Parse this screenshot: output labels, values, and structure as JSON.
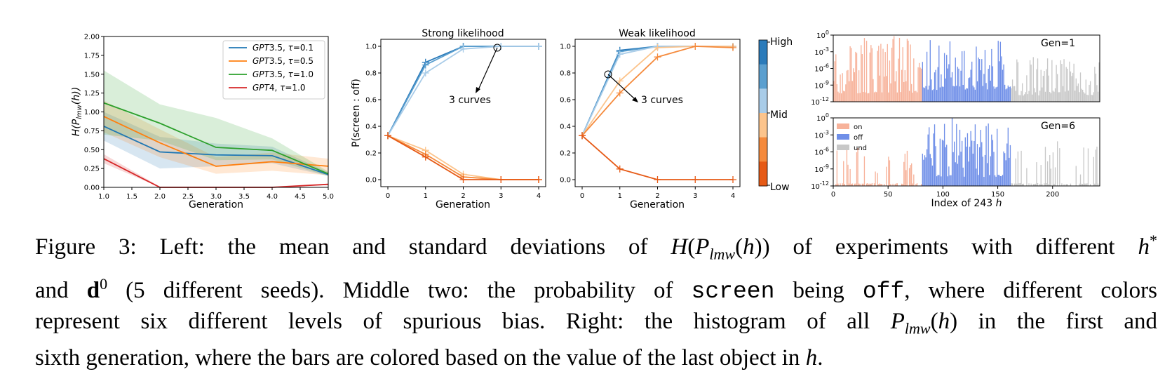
{
  "colors": {
    "gpt35_t01": "#1f77b4",
    "gpt35_t05": "#ff7f0e",
    "gpt35_t10": "#2ca02c",
    "gpt4_t10": "#d62728",
    "bias_levels": [
      "#2b7bba",
      "#5b9fcf",
      "#a9cce8",
      "#fcc48c",
      "#f58a3c",
      "#e65a16"
    ],
    "hist_on": "#f7b29a",
    "hist_off": "#6f8fe8",
    "hist_und": "#c8c8c8"
  },
  "caption": {
    "line1_a": "Figure 3: Left: the mean and standard deviations of ",
    "line1_H": "H",
    "line1_P": "P",
    "line1_sub": "lmw",
    "line1_h": "h",
    "line1_b": ")) of experiments with different ",
    "line1_hstar": "h",
    "line2_a": "and ",
    "line2_d": "d",
    "line2_b": " (5 different seeds). Middle two: the probability of ",
    "line2_screen": "screen",
    "line2_c": " being ",
    "line2_off": "off",
    "line2_d2": ", where different colors",
    "line3_a": "represent six different levels of spurious bias. Right: the histogram of all ",
    "line3_P": "P",
    "line3_sub": "lmw",
    "line3_h": "h",
    "line3_b": ") in the first and",
    "line4_a": "sixth generation, where the bars are colored based on the value of the last object in ",
    "line4_h": "h",
    "line4_b": "."
  },
  "chart_data": [
    {
      "type": "line",
      "xlabel": "Generation",
      "ylabel": "H(P_lmw(h))",
      "xlim": [
        1.0,
        5.0
      ],
      "ylim": [
        0.0,
        2.0
      ],
      "xticks": [
        "1.0",
        "1.5",
        "2.0",
        "2.5",
        "3.0",
        "3.5",
        "4.0",
        "4.5",
        "5.0"
      ],
      "yticks": [
        "0.00",
        "0.25",
        "0.50",
        "0.75",
        "1.00",
        "1.25",
        "1.50",
        "1.75",
        "2.00"
      ],
      "legend_placement": "top-right",
      "x": [
        1,
        2,
        3,
        4,
        5
      ],
      "series": [
        {
          "name": "GPT3.5, τ=0.1",
          "model": "GPT",
          "ver": "3.5, ",
          "tau": "0.1",
          "color": "#1f77b4",
          "values": [
            0.81,
            0.47,
            0.43,
            0.42,
            0.17
          ],
          "lower": [
            0.62,
            0.25,
            0.28,
            0.32,
            0.15
          ],
          "upper": [
            1.0,
            0.67,
            0.58,
            0.54,
            0.2
          ]
        },
        {
          "name": "GPT3.5, τ=0.5",
          "model": "GPT",
          "ver": "3.5, ",
          "tau": "0.5",
          "color": "#ff7f0e",
          "values": [
            0.94,
            0.59,
            0.28,
            0.34,
            0.28
          ],
          "lower": [
            0.73,
            0.4,
            0.18,
            0.22,
            0.16
          ],
          "upper": [
            1.15,
            0.77,
            0.4,
            0.46,
            0.38
          ]
        },
        {
          "name": "GPT3.5, τ=1.0",
          "model": "GPT",
          "ver": "3.5, ",
          "tau": "1.0",
          "color": "#2ca02c",
          "values": [
            1.12,
            0.85,
            0.53,
            0.49,
            0.18
          ],
          "lower": [
            0.7,
            0.62,
            0.36,
            0.37,
            0.15
          ],
          "upper": [
            1.55,
            1.1,
            0.92,
            0.65,
            0.21
          ]
        },
        {
          "name": "GPT4, τ=1.0",
          "model": "GPT",
          "ver": "4, ",
          "tau": "1.0",
          "color": "#d62728",
          "values": [
            0.38,
            0.0,
            0.0,
            0.0,
            0.04
          ],
          "lower": [
            0.32,
            0.0,
            0.0,
            0.0,
            0.03
          ],
          "upper": [
            0.44,
            0.01,
            0.01,
            0.01,
            0.05
          ]
        }
      ]
    },
    {
      "type": "line",
      "title": "Strong likelihood",
      "xlabel": "Generation",
      "ylabel": "P(screen : off)",
      "xlim": [
        0,
        4
      ],
      "ylim": [
        0.0,
        1.0
      ],
      "xticks": [
        "0",
        "1",
        "2",
        "3",
        "4"
      ],
      "yticks": [
        "0.0",
        "0.2",
        "0.4",
        "0.6",
        "0.8",
        "1.0"
      ],
      "annotation": "3 curves",
      "x": [
        0,
        1,
        2,
        3,
        4
      ],
      "series": [
        {
          "level": 0,
          "values": [
            0.33,
            0.88,
            1.0,
            1.0,
            1.0
          ]
        },
        {
          "level": 1,
          "values": [
            0.33,
            0.86,
            1.0,
            1.0,
            1.0
          ]
        },
        {
          "level": 2,
          "values": [
            0.33,
            0.8,
            0.98,
            1.0,
            1.0
          ]
        },
        {
          "level": 3,
          "values": [
            0.33,
            0.22,
            0.04,
            0.0,
            0.0
          ]
        },
        {
          "level": 4,
          "values": [
            0.33,
            0.19,
            0.02,
            0.0,
            0.0
          ]
        },
        {
          "level": 5,
          "values": [
            0.33,
            0.17,
            0.0,
            0.0,
            0.0
          ]
        }
      ]
    },
    {
      "type": "line",
      "title": "Weak likelihood",
      "xlabel": "Generation",
      "xlim": [
        0,
        4
      ],
      "ylim": [
        0.0,
        1.0
      ],
      "xticks": [
        "0",
        "1",
        "2",
        "3",
        "4"
      ],
      "yticks": [
        "0.0",
        "0.2",
        "0.4",
        "0.6",
        "0.8",
        "1.0"
      ],
      "annotation": "3 curves",
      "colorbar_labels": [
        "High",
        "Mid",
        "Low"
      ],
      "x": [
        0,
        1,
        2,
        3,
        4
      ],
      "series": [
        {
          "level": 0,
          "values": [
            0.33,
            0.97,
            1.0,
            1.0,
            1.0
          ]
        },
        {
          "level": 1,
          "values": [
            0.33,
            0.96,
            1.0,
            1.0,
            1.0
          ]
        },
        {
          "level": 2,
          "values": [
            0.33,
            0.94,
            1.0,
            1.0,
            1.0
          ]
        },
        {
          "level": 3,
          "values": [
            0.33,
            0.74,
            0.99,
            1.0,
            1.0
          ]
        },
        {
          "level": 4,
          "values": [
            0.33,
            0.65,
            0.92,
            1.0,
            0.99
          ]
        },
        {
          "level": 5,
          "values": [
            0.33,
            0.08,
            0.0,
            0.0,
            0.0
          ]
        }
      ]
    },
    {
      "type": "bar",
      "title": "Gen=1",
      "yscale": "log",
      "ylim": [
        1e-12,
        1
      ],
      "yticks_base": "10",
      "yticks_exp": [
        "0",
        "-3",
        "-6",
        "-9",
        "-12"
      ],
      "xlim": [
        0,
        243
      ],
      "categories_count": 243,
      "segments": {
        "on": [
          0,
          80
        ],
        "off": [
          81,
          161
        ],
        "und": [
          162,
          242
        ]
      }
    },
    {
      "type": "bar",
      "title": "Gen=6",
      "yscale": "log",
      "ylim": [
        1e-12,
        1
      ],
      "yticks_base": "10",
      "yticks_exp": [
        "0",
        "-3",
        "-6",
        "-9",
        "-12"
      ],
      "xticks": [
        "0",
        "50",
        "100",
        "150",
        "200"
      ],
      "xlabel_prefix": "Index of 243 ",
      "xlabel_var": "h",
      "legend": [
        "on",
        "off",
        "und"
      ],
      "categories_count": 243,
      "segments": {
        "on": [
          0,
          80
        ],
        "off": [
          81,
          161
        ],
        "und": [
          162,
          242
        ]
      }
    }
  ]
}
